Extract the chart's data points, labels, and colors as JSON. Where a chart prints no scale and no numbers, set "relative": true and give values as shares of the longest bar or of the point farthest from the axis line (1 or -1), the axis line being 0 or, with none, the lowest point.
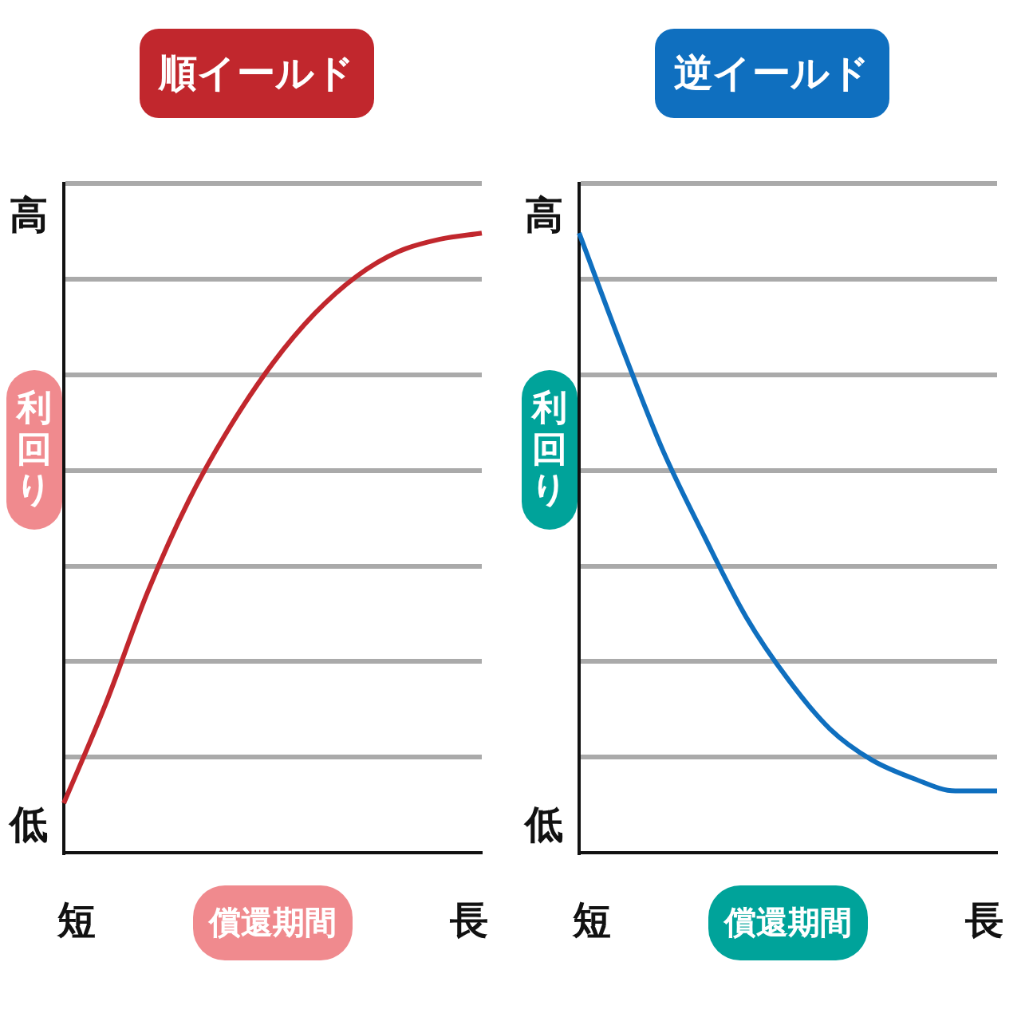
{
  "chart_data": [
    {
      "type": "line",
      "title": "順イールド",
      "xlabel": "償還期間",
      "ylabel": "利回り",
      "relative": true,
      "grid": "y",
      "legend": false,
      "marker": "none",
      "annotations": [
        "高",
        "低",
        "短",
        "長"
      ],
      "categories": [
        null,
        null,
        null,
        null,
        null,
        null,
        null,
        null,
        null,
        null,
        null
      ],
      "series": [
        {
          "color": "#c1272d",
          "values": [
            0.08,
            0.24,
            0.42,
            0.57,
            0.69,
            0.79,
            0.87,
            0.93,
            0.97,
            0.99,
            1
          ]
        }
      ]
    },
    {
      "type": "line",
      "title": "逆イールド",
      "xlabel": "償還期間",
      "ylabel": "利回り",
      "relative": true,
      "grid": "y",
      "legend": false,
      "marker": "none",
      "annotations": [
        "高",
        "低",
        "短",
        "長"
      ],
      "categories": [
        null,
        null,
        null,
        null,
        null,
        null,
        null,
        null,
        null,
        null,
        null
      ],
      "series": [
        {
          "color": "#0f6fbf",
          "values": [
            1,
            0.82,
            0.65,
            0.51,
            0.38,
            0.28,
            0.2,
            0.15,
            0.12,
            0.1,
            0.1
          ]
        }
      ]
    }
  ]
}
